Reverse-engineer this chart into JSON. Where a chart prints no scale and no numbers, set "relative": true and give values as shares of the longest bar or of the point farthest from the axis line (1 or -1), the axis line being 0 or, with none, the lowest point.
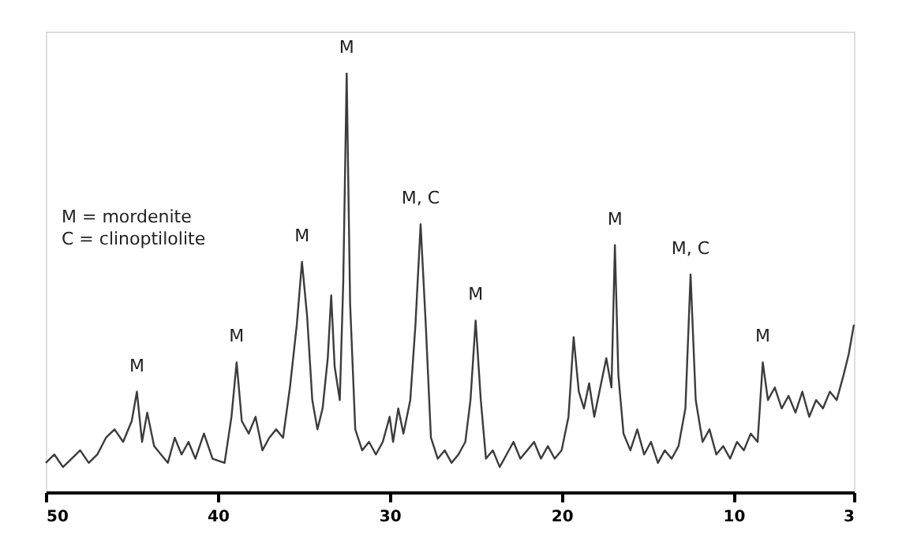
{
  "chart_data": {
    "type": "line",
    "relative": true,
    "grid": false,
    "marker": "none",
    "line_style": "solid",
    "tick_labels": "x",
    "xlim": [
      50,
      3
    ],
    "xticks": [
      50,
      40,
      30,
      20,
      10,
      3
    ],
    "x": [
      50,
      49.5,
      49,
      48.5,
      48,
      47.5,
      47,
      46.5,
      46,
      45.5,
      45,
      44.7,
      44.4,
      44.1,
      43.7,
      43.3,
      42.9,
      42.5,
      42.1,
      41.7,
      41.3,
      40.8,
      40.3,
      39.6,
      39.2,
      38.9,
      38.6,
      38.2,
      37.8,
      37.4,
      37,
      36.6,
      36.2,
      35.8,
      35.4,
      35.1,
      34.8,
      34.5,
      34.2,
      33.9,
      33.6,
      33.4,
      33.2,
      32.9,
      32.7,
      32.5,
      32.3,
      32.0,
      31.6,
      31.2,
      30.8,
      30.4,
      30.0,
      29.8,
      29.5,
      29.2,
      28.8,
      28.5,
      28.2,
      27.9,
      27.6,
      27.2,
      26.8,
      26.4,
      26.0,
      25.6,
      25.3,
      25.0,
      24.7,
      24.4,
      24.0,
      23.6,
      23.2,
      22.8,
      22.4,
      22.0,
      21.6,
      21.2,
      20.8,
      20.4,
      20.0,
      19.6,
      19.3,
      19.0,
      18.7,
      18.4,
      18.1,
      17.8,
      17.4,
      17.1,
      16.9,
      16.7,
      16.4,
      16.0,
      15.6,
      15.2,
      14.8,
      14.4,
      14.0,
      13.6,
      13.2,
      12.8,
      12.5,
      12.2,
      11.8,
      11.4,
      11.0,
      10.6,
      10.2,
      9.8,
      9.4,
      9.0,
      8.6,
      8.3,
      8.0,
      7.6,
      7.2,
      6.8,
      6.4,
      6.0,
      5.6,
      5.2,
      4.8,
      4.4,
      4.0,
      3.6,
      3.3,
      3.0
    ],
    "series": [
      {
        "color": "#3c3c3c",
        "values": [
          0.07,
          0.09,
          0.06,
          0.08,
          0.1,
          0.07,
          0.09,
          0.13,
          0.15,
          0.12,
          0.17,
          0.24,
          0.12,
          0.19,
          0.11,
          0.09,
          0.07,
          0.13,
          0.09,
          0.12,
          0.08,
          0.14,
          0.08,
          0.07,
          0.18,
          0.31,
          0.17,
          0.14,
          0.18,
          0.1,
          0.13,
          0.15,
          0.13,
          0.25,
          0.4,
          0.55,
          0.42,
          0.22,
          0.15,
          0.2,
          0.32,
          0.47,
          0.3,
          0.22,
          0.5,
          1.0,
          0.45,
          0.15,
          0.1,
          0.12,
          0.09,
          0.12,
          0.18,
          0.12,
          0.2,
          0.14,
          0.22,
          0.4,
          0.64,
          0.4,
          0.13,
          0.08,
          0.1,
          0.07,
          0.09,
          0.12,
          0.22,
          0.41,
          0.22,
          0.08,
          0.1,
          0.06,
          0.09,
          0.12,
          0.08,
          0.1,
          0.12,
          0.08,
          0.11,
          0.08,
          0.1,
          0.18,
          0.37,
          0.24,
          0.2,
          0.26,
          0.18,
          0.24,
          0.32,
          0.25,
          0.59,
          0.28,
          0.14,
          0.1,
          0.15,
          0.09,
          0.12,
          0.07,
          0.1,
          0.08,
          0.11,
          0.2,
          0.52,
          0.22,
          0.12,
          0.15,
          0.09,
          0.11,
          0.08,
          0.12,
          0.1,
          0.14,
          0.12,
          0.31,
          0.22,
          0.25,
          0.2,
          0.23,
          0.19,
          0.24,
          0.18,
          0.22,
          0.2,
          0.24,
          0.22,
          0.28,
          0.33,
          0.4
        ]
      }
    ],
    "annotations": [
      {
        "text": "M",
        "x": 44.7,
        "y": 0.24
      },
      {
        "text": "M",
        "x": 38.9,
        "y": 0.31
      },
      {
        "text": "M",
        "x": 35.1,
        "y": 0.55
      },
      {
        "text": "M",
        "x": 32.5,
        "y": 1.0
      },
      {
        "text": "M, C",
        "x": 28.2,
        "y": 0.64
      },
      {
        "text": "M",
        "x": 25.0,
        "y": 0.41
      },
      {
        "text": "M",
        "x": 16.9,
        "y": 0.59
      },
      {
        "text": "M, C",
        "x": 12.5,
        "y": 0.52
      },
      {
        "text": "M",
        "x": 8.3,
        "y": 0.31
      },
      "M = mordenite",
      "C = clinoptilolite"
    ]
  }
}
